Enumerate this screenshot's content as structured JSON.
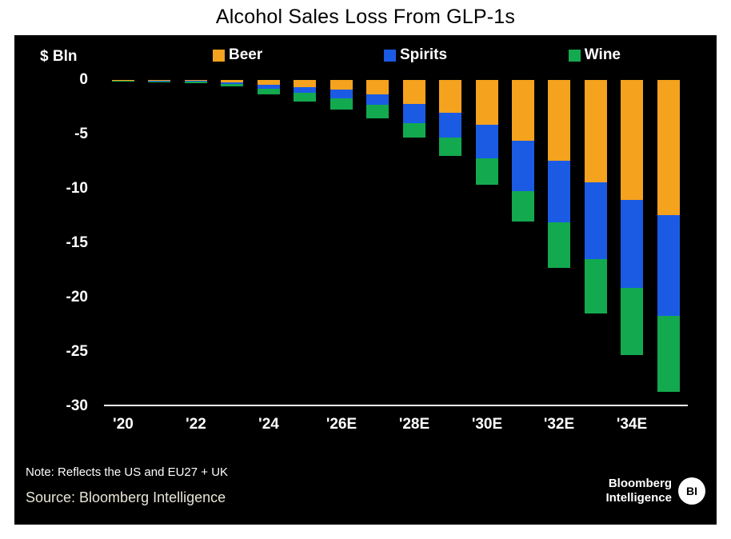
{
  "title": "Alcohol Sales Loss From GLP-1s",
  "panel": {
    "y_axis_title": "$ Bln",
    "note": "Note: Reflects the US and EU27 + UK",
    "source": "Source: Bloomberg Intelligence",
    "logo": {
      "line1": "Bloomberg",
      "line2": "Intelligence",
      "badge": "BI"
    }
  },
  "colors": {
    "beer": "#F5A21E",
    "spirits": "#1B5BE4",
    "wine": "#13A94E",
    "panel_bg": "#000000",
    "text": "#FFFFFF",
    "source_text": "#E9E5D8"
  },
  "chart_data": {
    "type": "bar",
    "stacked": true,
    "title": "Alcohol Sales Loss From GLP-1s",
    "ylabel": "$ Bln",
    "ylim": [
      -30,
      0
    ],
    "yticks": [
      0,
      -5,
      -10,
      -15,
      -20,
      -25,
      -30
    ],
    "grid": false,
    "legend_position": "top",
    "categories": [
      "'20",
      "'21",
      "'22",
      "'23",
      "'24",
      "'25",
      "'26E",
      "'27E",
      "'28E",
      "'29E",
      "'30E",
      "'31E",
      "'32E",
      "'33E",
      "'34E",
      "'35E"
    ],
    "x_tick_labels_shown": [
      "'20",
      "'22",
      "'24",
      "'26E",
      "'28E",
      "'30E",
      "'32E",
      "'34E"
    ],
    "series": [
      {
        "name": "Beer",
        "color_key": "beer",
        "values": [
          -0.05,
          -0.08,
          -0.1,
          -0.2,
          -0.45,
          -0.65,
          -0.9,
          -1.3,
          -2.2,
          -3.0,
          -4.1,
          -5.6,
          -7.4,
          -9.4,
          -11.0,
          -12.4
        ]
      },
      {
        "name": "Spirits",
        "color_key": "spirits",
        "values": [
          -0.05,
          -0.07,
          -0.08,
          -0.15,
          -0.35,
          -0.55,
          -0.8,
          -1.0,
          -1.8,
          -2.3,
          -3.1,
          -4.6,
          -5.7,
          -7.1,
          -8.1,
          -9.3
        ]
      },
      {
        "name": "Wine",
        "color_key": "wine",
        "values": [
          -0.05,
          -0.07,
          -0.09,
          -0.25,
          -0.5,
          -0.8,
          -1.0,
          -1.2,
          -1.3,
          -1.7,
          -2.4,
          -2.8,
          -4.2,
          -5.0,
          -6.2,
          -7.0
        ]
      }
    ]
  }
}
